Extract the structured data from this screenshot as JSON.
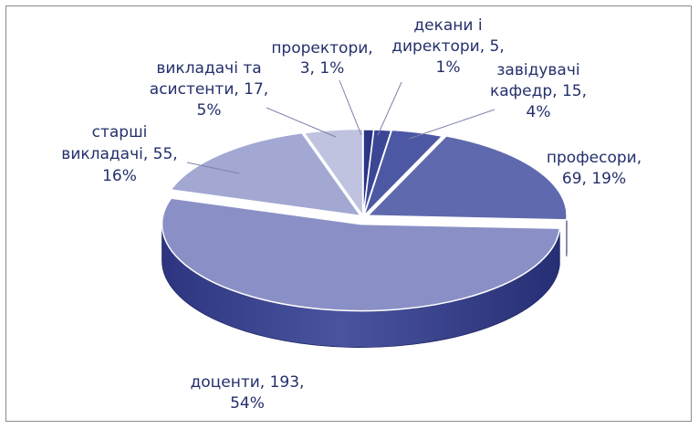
{
  "chart_data": {
    "type": "pie",
    "style": "3d-exploded",
    "title": "",
    "categories": [
      "проректори",
      "декани і директори",
      "завідувачі кафедр",
      "професори",
      "доценти",
      "старші викладачі",
      "викладачі та асистенти"
    ],
    "values": [
      3,
      5,
      15,
      69,
      193,
      55,
      17
    ],
    "percents": [
      1,
      1,
      4,
      19,
      54,
      16,
      5
    ],
    "colors": {
      "проректори": "#2a3586",
      "декани і директори": "#3b4795",
      "завідувачі кафедр": "#4c58a3",
      "професори": "#5f69ad",
      "доценти": "#8a90c6",
      "старші викладачі": "#a2a8d2",
      "викладачі та асистенти": "#bfc3e0"
    },
    "labels": [
      {
        "name": "проректори",
        "lines": [
          "проректори,",
          "3, 1%"
        ]
      },
      {
        "name": "декани і директори",
        "lines": [
          "декани і",
          "директори, 5,",
          "1%"
        ]
      },
      {
        "name": "завідувачі кафедр",
        "lines": [
          "завідувачі",
          "кафедр, 15,",
          "4%"
        ]
      },
      {
        "name": "професори",
        "lines": [
          "професори,",
          "69, 19%"
        ]
      },
      {
        "name": "доценти",
        "lines": [
          "доценти, 193,",
          "54%"
        ]
      },
      {
        "name": "старші викладачі",
        "lines": [
          "старші",
          "викладачі, 55,",
          "16%"
        ]
      },
      {
        "name": "викладачі та асистенти",
        "lines": [
          "викладачі та",
          "асистенти, 17,",
          "5%"
        ]
      }
    ]
  }
}
